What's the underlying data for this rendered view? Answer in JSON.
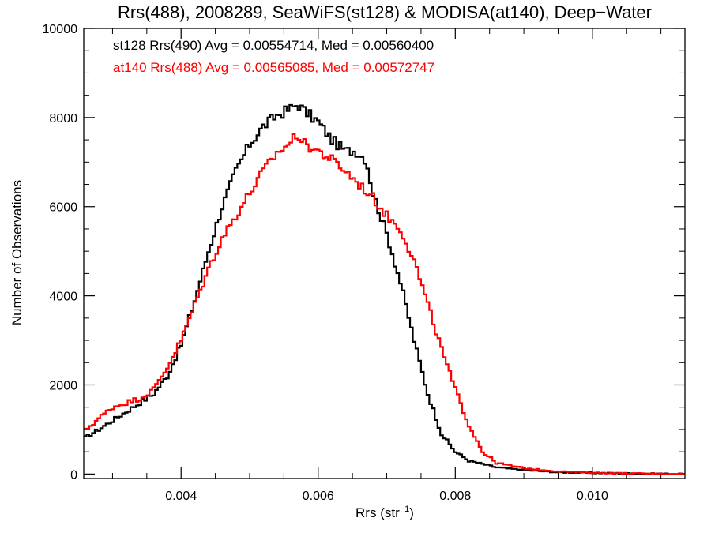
{
  "chart_data": {
    "type": "line",
    "title": "Rrs(488), 2008289, SeaWiFS(st128) & MODISA(at140), Deep−Water",
    "xlabel_base": "Rrs (str",
    "xlabel_sup": "−1",
    "xlabel_close": ")",
    "ylabel": "Number of Observations",
    "xlim": [
      0.00258,
      0.01135
    ],
    "ylim": [
      -100,
      10000
    ],
    "xticks": [
      {
        "value": 0.004,
        "label": "0.004"
      },
      {
        "value": 0.006,
        "label": "0.006"
      },
      {
        "value": 0.008,
        "label": "0.008"
      },
      {
        "value": 0.01,
        "label": "0.010"
      }
    ],
    "yticks": [
      {
        "value": 0,
        "label": "0"
      },
      {
        "value": 2000,
        "label": "2000"
      },
      {
        "value": 4000,
        "label": "4000"
      },
      {
        "value": 6000,
        "label": "6000"
      },
      {
        "value": 8000,
        "label": "8000"
      },
      {
        "value": 10000,
        "label": "10000"
      }
    ],
    "x_minor_step": 0.0005,
    "y_minor_step": 500,
    "bin_width": 4e-05,
    "series": [
      {
        "name": "st128 Rrs(490) Avg = 0.00554714, Med = 0.00560400",
        "color": "#000000",
        "anchors": [
          [
            0.00258,
            800
          ],
          [
            0.0028,
            1000
          ],
          [
            0.003,
            1200
          ],
          [
            0.0032,
            1400
          ],
          [
            0.0034,
            1600
          ],
          [
            0.0036,
            1800
          ],
          [
            0.0038,
            2200
          ],
          [
            0.004,
            2900
          ],
          [
            0.0042,
            3900
          ],
          [
            0.0044,
            5000
          ],
          [
            0.0046,
            6000
          ],
          [
            0.0048,
            6800
          ],
          [
            0.005,
            7400
          ],
          [
            0.0052,
            7800
          ],
          [
            0.0054,
            8050
          ],
          [
            0.0056,
            8200
          ],
          [
            0.0057,
            8300
          ],
          [
            0.0058,
            8150
          ],
          [
            0.006,
            7900
          ],
          [
            0.0062,
            7500
          ],
          [
            0.0064,
            7250
          ],
          [
            0.00655,
            7250
          ],
          [
            0.0067,
            7050
          ],
          [
            0.0068,
            6300
          ],
          [
            0.007,
            5400
          ],
          [
            0.0072,
            4300
          ],
          [
            0.0074,
            3000
          ],
          [
            0.0076,
            1800
          ],
          [
            0.0078,
            900
          ],
          [
            0.008,
            500
          ],
          [
            0.0082,
            300
          ],
          [
            0.0086,
            150
          ],
          [
            0.009,
            90
          ],
          [
            0.0095,
            40
          ],
          [
            0.01,
            25
          ],
          [
            0.0105,
            15
          ],
          [
            0.01135,
            0
          ]
        ]
      },
      {
        "name": "at140 Rrs(488) Avg = 0.00565085, Med = 0.00572747",
        "color": "#ff0000",
        "anchors": [
          [
            0.00258,
            950
          ],
          [
            0.0028,
            1250
          ],
          [
            0.003,
            1500
          ],
          [
            0.0032,
            1600
          ],
          [
            0.0034,
            1700
          ],
          [
            0.0036,
            1900
          ],
          [
            0.0038,
            2400
          ],
          [
            0.004,
            3000
          ],
          [
            0.0042,
            3800
          ],
          [
            0.0044,
            4600
          ],
          [
            0.0046,
            5300
          ],
          [
            0.0048,
            5800
          ],
          [
            0.005,
            6300
          ],
          [
            0.0052,
            6800
          ],
          [
            0.0054,
            7200
          ],
          [
            0.0056,
            7450
          ],
          [
            0.0057,
            7650
          ],
          [
            0.0058,
            7400
          ],
          [
            0.006,
            7250
          ],
          [
            0.0062,
            7050
          ],
          [
            0.0064,
            6800
          ],
          [
            0.0066,
            6500
          ],
          [
            0.0068,
            6200
          ],
          [
            0.007,
            5800
          ],
          [
            0.0072,
            5500
          ],
          [
            0.0074,
            4800
          ],
          [
            0.0076,
            3800
          ],
          [
            0.0078,
            2800
          ],
          [
            0.008,
            1900
          ],
          [
            0.0082,
            1100
          ],
          [
            0.0084,
            500
          ],
          [
            0.0086,
            250
          ],
          [
            0.009,
            130
          ],
          [
            0.0095,
            60
          ],
          [
            0.01,
            30
          ],
          [
            0.0105,
            15
          ],
          [
            0.01135,
            0
          ]
        ]
      }
    ]
  }
}
